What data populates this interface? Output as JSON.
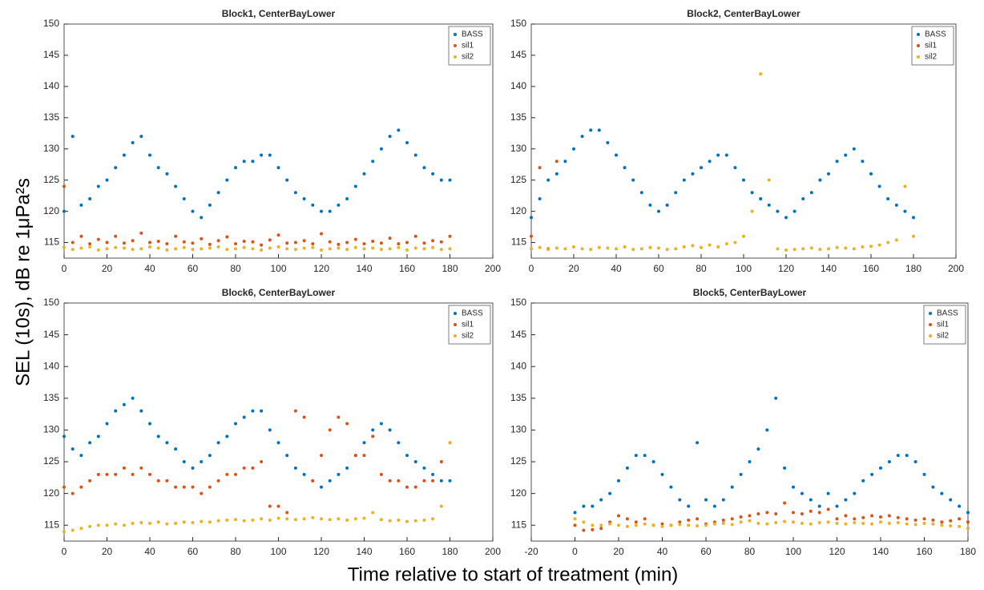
{
  "figure": {
    "ylabel": "SEL (10s), dB re 1μPa²s",
    "xlabel": "Time relative to start of treatment (min)"
  },
  "chart_data": [
    {
      "type": "scatter",
      "title": "Block1, CenterBayLower",
      "xlim": [
        0,
        200
      ],
      "xticks": [
        0,
        20,
        40,
        60,
        80,
        100,
        120,
        140,
        160,
        180,
        200
      ],
      "ylim": [
        112.5,
        150
      ],
      "yticks": [
        115,
        120,
        125,
        130,
        135,
        140,
        145,
        150
      ],
      "legend": "top-right",
      "x": [
        0,
        4,
        8,
        12,
        16,
        20,
        24,
        28,
        32,
        36,
        40,
        44,
        48,
        52,
        56,
        60,
        64,
        68,
        72,
        76,
        80,
        84,
        88,
        92,
        96,
        100,
        104,
        108,
        112,
        116,
        120,
        124,
        128,
        132,
        136,
        140,
        144,
        148,
        152,
        156,
        160,
        164,
        168,
        172,
        176,
        180
      ],
      "series": [
        {
          "name": "BASS",
          "color": "#0072bd",
          "values": [
            120,
            132,
            121,
            122,
            124,
            125,
            127,
            129,
            131,
            132,
            129,
            127,
            126,
            124,
            122,
            120,
            119,
            121,
            123,
            125,
            127,
            128,
            128,
            129,
            129,
            127,
            125,
            123,
            122,
            121,
            120,
            120,
            121,
            122,
            124,
            126,
            128,
            130,
            132,
            133,
            131,
            129,
            127,
            126,
            125,
            125
          ]
        },
        {
          "name": "sil1",
          "color": "#d95319",
          "values": [
            124,
            115,
            116,
            114.8,
            115.5,
            115,
            116,
            114.9,
            115.3,
            116.5,
            115,
            115.2,
            114.8,
            116,
            115.1,
            114.9,
            115.6,
            114.7,
            115.3,
            115.9,
            114.8,
            115.2,
            115.1,
            114.6,
            115.4,
            116.2,
            114.9,
            115,
            115.3,
            114.8,
            116.4,
            115.1,
            114.7,
            115,
            115.5,
            114.8,
            115.2,
            114.9,
            115.7,
            114.8,
            115,
            116,
            114.9,
            115.3,
            115.1,
            116
          ]
        },
        {
          "name": "sil2",
          "color": "#edb120",
          "values": [
            114.2,
            113.9,
            114.1,
            114.3,
            113.8,
            114,
            114.2,
            114.1,
            113.9,
            114,
            114.3,
            114.1,
            113.8,
            114,
            114.2,
            113.9,
            114,
            114.1,
            114.3,
            113.9,
            114,
            114.2,
            114,
            113.8,
            114.1,
            114.3,
            114,
            113.9,
            114.1,
            114.2,
            113.8,
            114,
            114.1,
            113.9,
            114.2,
            114,
            114.1,
            113.9,
            114,
            114.2,
            113.8,
            114.1,
            114,
            114.2,
            113.9,
            114
          ]
        }
      ]
    },
    {
      "type": "scatter",
      "title": "Block2, CenterBayLower",
      "xlim": [
        0,
        200
      ],
      "xticks": [
        0,
        20,
        40,
        60,
        80,
        100,
        120,
        140,
        160,
        180,
        200
      ],
      "ylim": [
        112.5,
        150
      ],
      "yticks": [
        115,
        120,
        125,
        130,
        135,
        140,
        145,
        150
      ],
      "legend": "top-right",
      "x": [
        0,
        4,
        8,
        12,
        16,
        20,
        24,
        28,
        32,
        36,
        40,
        44,
        48,
        52,
        56,
        60,
        64,
        68,
        72,
        76,
        80,
        84,
        88,
        92,
        96,
        100,
        104,
        108,
        112,
        116,
        120,
        124,
        128,
        132,
        136,
        140,
        144,
        148,
        152,
        156,
        160,
        164,
        168,
        172,
        176,
        180
      ],
      "series": [
        {
          "name": "BASS",
          "color": "#0072bd",
          "values": [
            119,
            122,
            125,
            126,
            128,
            130,
            132,
            133,
            133,
            131,
            129,
            127,
            125,
            123,
            121,
            120,
            121,
            123,
            125,
            126,
            127,
            128,
            129,
            129,
            127,
            125,
            123,
            122,
            121,
            120,
            119,
            120,
            122,
            123,
            125,
            126,
            128,
            129,
            130,
            128,
            126,
            124,
            122,
            121,
            120,
            119
          ]
        },
        {
          "name": "sil1",
          "color": "#d95319",
          "values": [
            116,
            127,
            114,
            128,
            null,
            null,
            null,
            null,
            null,
            null,
            null,
            null,
            null,
            null,
            null,
            null,
            null,
            null,
            null,
            null,
            null,
            null,
            null,
            null,
            null,
            null,
            null,
            null,
            null,
            null,
            null,
            null,
            null,
            null,
            null,
            null,
            null,
            null,
            null,
            null,
            null,
            null,
            null,
            null,
            null,
            null
          ]
        },
        {
          "name": "sil2",
          "color": "#edb120",
          "values": [
            114,
            114.2,
            113.9,
            114.1,
            114,
            114.3,
            114,
            113.9,
            114.2,
            114.1,
            114,
            114.3,
            113.9,
            114,
            114.2,
            114.1,
            113.9,
            114,
            114.3,
            114.5,
            114.2,
            114.6,
            114.3,
            114.8,
            115,
            116,
            120,
            142,
            125,
            114,
            113.8,
            113.9,
            114,
            114.1,
            113.9,
            114,
            114.2,
            114.1,
            114,
            114.3,
            114.4,
            114.6,
            115,
            115.4,
            124,
            116
          ]
        }
      ]
    },
    {
      "type": "scatter",
      "title": "Block6, CenterBayLower",
      "xlim": [
        0,
        200
      ],
      "xticks": [
        0,
        20,
        40,
        60,
        80,
        100,
        120,
        140,
        160,
        180,
        200
      ],
      "ylim": [
        112.5,
        150
      ],
      "yticks": [
        115,
        120,
        125,
        130,
        135,
        140,
        145,
        150
      ],
      "legend": "top-right",
      "x": [
        0,
        4,
        8,
        12,
        16,
        20,
        24,
        28,
        32,
        36,
        40,
        44,
        48,
        52,
        56,
        60,
        64,
        68,
        72,
        76,
        80,
        84,
        88,
        92,
        96,
        100,
        104,
        108,
        112,
        116,
        120,
        124,
        128,
        132,
        136,
        140,
        144,
        148,
        152,
        156,
        160,
        164,
        168,
        172,
        176,
        180
      ],
      "series": [
        {
          "name": "BASS",
          "color": "#0072bd",
          "values": [
            129,
            127,
            126,
            128,
            129,
            131,
            133,
            134,
            135,
            133,
            131,
            129,
            128,
            127,
            125,
            124,
            125,
            126,
            128,
            129,
            131,
            132,
            133,
            133,
            130,
            128,
            126,
            124,
            123,
            122,
            121,
            122,
            123,
            124,
            126,
            128,
            130,
            131,
            130,
            128,
            126,
            125,
            124,
            123,
            122,
            122
          ]
        },
        {
          "name": "sil1",
          "color": "#d95319",
          "values": [
            121,
            120,
            121,
            122,
            123,
            123,
            123,
            124,
            123,
            124,
            123,
            122,
            122,
            121,
            121,
            121,
            120,
            121,
            122,
            123,
            123,
            124,
            124,
            125,
            118,
            118,
            117,
            133,
            132,
            122,
            126,
            130,
            132,
            131,
            126,
            126,
            129,
            123,
            122,
            122,
            121,
            121,
            122,
            122,
            125,
            128
          ]
        },
        {
          "name": "sil2",
          "color": "#edb120",
          "values": [
            114,
            114.2,
            114.5,
            114.8,
            115,
            115,
            115.2,
            115,
            115.3,
            115.4,
            115.3,
            115.5,
            115.2,
            115.3,
            115.5,
            115.4,
            115.6,
            115.5,
            115.7,
            115.8,
            115.9,
            115.7,
            115.8,
            116,
            115.8,
            116.1,
            116,
            115.9,
            116,
            116.2,
            116,
            115.9,
            116,
            115.8,
            116,
            116.1,
            117,
            115.9,
            115.7,
            115.8,
            115.6,
            115.7,
            115.8,
            116,
            118,
            128
          ]
        }
      ]
    },
    {
      "type": "scatter",
      "title": "Block5, CenterBayLower",
      "xlim": [
        -20,
        180
      ],
      "xticks": [
        -20,
        0,
        20,
        40,
        60,
        80,
        100,
        120,
        140,
        160,
        180
      ],
      "ylim": [
        112.5,
        150
      ],
      "yticks": [
        115,
        120,
        125,
        130,
        135,
        140,
        145,
        150
      ],
      "legend": "top-right",
      "x": [
        0,
        4,
        8,
        12,
        16,
        20,
        24,
        28,
        32,
        36,
        40,
        44,
        48,
        52,
        56,
        60,
        64,
        68,
        72,
        76,
        80,
        84,
        88,
        92,
        96,
        100,
        104,
        108,
        112,
        116,
        120,
        124,
        128,
        132,
        136,
        140,
        144,
        148,
        152,
        156,
        160,
        164,
        168,
        172,
        176,
        180
      ],
      "series": [
        {
          "name": "BASS",
          "color": "#0072bd",
          "values": [
            117,
            118,
            118,
            119,
            120,
            122,
            124,
            126,
            126,
            125,
            123,
            121,
            119,
            118,
            128,
            119,
            118,
            119,
            121,
            123,
            125,
            127,
            130,
            135,
            124,
            121,
            120,
            119,
            118,
            120,
            118,
            119,
            120,
            122,
            123,
            124,
            125,
            126,
            126,
            125,
            123,
            121,
            120,
            119,
            118,
            117
          ]
        },
        {
          "name": "sil1",
          "color": "#d95319",
          "values": [
            115,
            114.2,
            114.3,
            114.5,
            115.5,
            116.5,
            116,
            115.5,
            116,
            115,
            115.2,
            115,
            115.5,
            115.8,
            116,
            115.2,
            115.5,
            115.8,
            116,
            116.3,
            116.5,
            116.8,
            117,
            116.8,
            118.5,
            117,
            116.8,
            117.2,
            117,
            117.5,
            116,
            116.5,
            116,
            116.2,
            116.5,
            116.3,
            116.5,
            116.2,
            116,
            115.8,
            116,
            115.8,
            115.5,
            115.7,
            116,
            115.5
          ]
        },
        {
          "name": "sil2",
          "color": "#edb120",
          "values": [
            116,
            115.5,
            115,
            115,
            115.2,
            115,
            114.8,
            115,
            115.2,
            115,
            114.8,
            115,
            115.1,
            115,
            114.9,
            115,
            115.2,
            115.3,
            115.1,
            115.5,
            115.7,
            115.3,
            115.2,
            115.4,
            115.6,
            115.5,
            115.3,
            115.2,
            115.4,
            115.5,
            115.3,
            115.2,
            115.4,
            115.3,
            115.2,
            115.5,
            115.3,
            115.4,
            115.2,
            115.1,
            115.3,
            115.2,
            115,
            114.9,
            114.8,
            114.5
          ]
        }
      ]
    }
  ]
}
